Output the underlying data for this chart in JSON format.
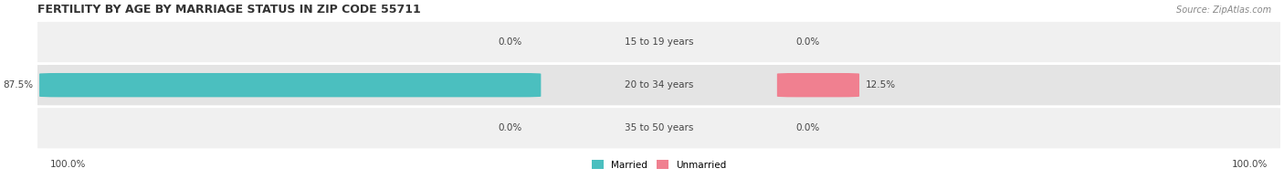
{
  "title": "FERTILITY BY AGE BY MARRIAGE STATUS IN ZIP CODE 55711",
  "source": "Source: ZipAtlas.com",
  "rows": [
    {
      "label": "15 to 19 years",
      "married": 0.0,
      "unmarried": 0.0
    },
    {
      "label": "20 to 34 years",
      "married": 87.5,
      "unmarried": 12.5
    },
    {
      "label": "35 to 50 years",
      "married": 0.0,
      "unmarried": 0.0
    }
  ],
  "married_color": "#4bbfbf",
  "unmarried_color": "#f08090",
  "bar_bg_color": "#e8e8e8",
  "row_bg_colors": [
    "#f0f0f0",
    "#e4e4e4",
    "#f0f0f0"
  ],
  "left_label": "100.0%",
  "right_label": "100.0%",
  "legend_married": "Married",
  "legend_unmarried": "Unmarried",
  "title_fontsize": 9,
  "source_fontsize": 7,
  "label_fontsize": 7.5,
  "bar_label_fontsize": 7.5,
  "figsize": [
    14.06,
    1.96
  ],
  "dpi": 100
}
